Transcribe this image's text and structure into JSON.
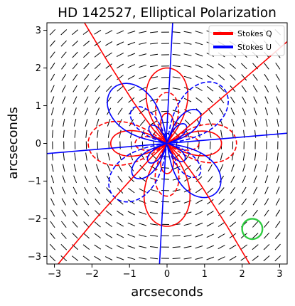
{
  "chart_data": {
    "type": "line",
    "title": "HD 142527, Elliptical Polarization",
    "xlabel": "arcseconds",
    "ylabel": "arcseconds",
    "xlim": [
      -3.2,
      3.2
    ],
    "ylim": [
      -3.2,
      3.2
    ],
    "xticks": [
      -3,
      -2,
      -1,
      0,
      1,
      2,
      3
    ],
    "yticks": [
      -3,
      -2,
      -1,
      0,
      1,
      2,
      3
    ],
    "xtick_labels": [
      "−3",
      "−2",
      "−1",
      "0",
      "1",
      "2",
      "3"
    ],
    "ytick_labels": [
      "−3",
      "−2",
      "−1",
      "0",
      "1",
      "2",
      "3"
    ],
    "legend_position": "top-right",
    "series": [
      {
        "name": "Stokes Q",
        "color": "#ff0000"
      },
      {
        "name": "Stokes U",
        "color": "#0000ff"
      }
    ],
    "beam_marker": {
      "x": 2.27,
      "y": -2.27,
      "radius": 0.27,
      "color": "#2ecc40"
    },
    "vector_field_spacing": 0.3,
    "grid": false
  }
}
